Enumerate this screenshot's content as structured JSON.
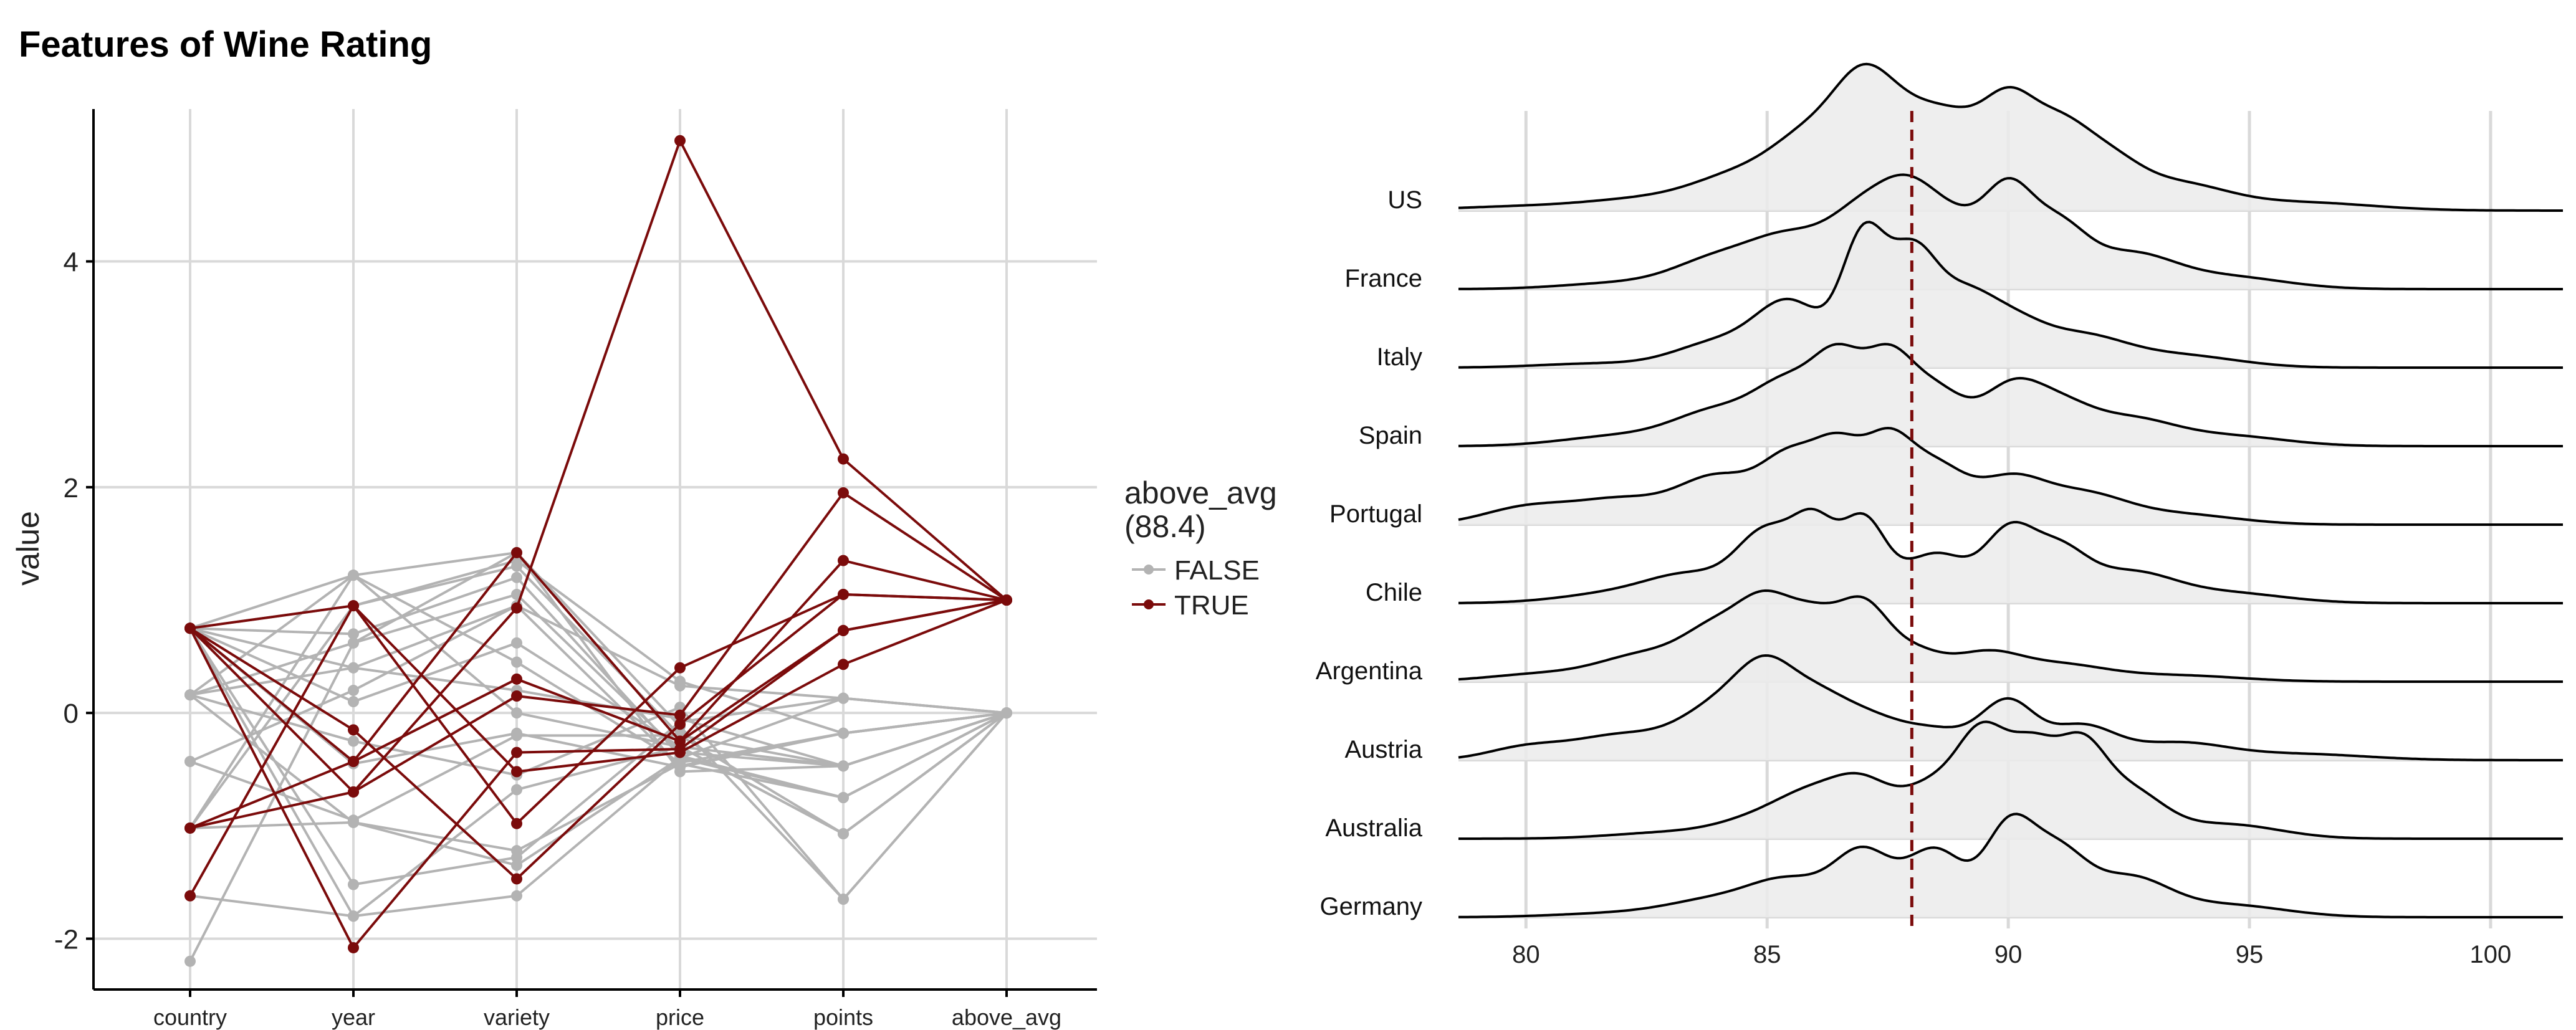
{
  "title": "Features of Wine Rating",
  "colors": {
    "false": "#b3b3b3",
    "true": "#7b0b0b",
    "grid": "#d9d9d9",
    "ridge_fill": "#ebebeb",
    "ridge_line": "#000000"
  },
  "chart_data": [
    {
      "type": "line",
      "subtype": "parallel-coordinates",
      "xlabel": "",
      "ylabel": "value",
      "categories": [
        "country",
        "year",
        "variety",
        "price",
        "points",
        "above_avg"
      ],
      "y_ticks": [
        -2,
        0,
        2,
        4
      ],
      "ylim": [
        -2.45,
        5.35
      ],
      "legend": {
        "title_line1": "above_avg",
        "title_line2": "(88.4)",
        "entries": [
          "FALSE",
          "TRUE"
        ],
        "placement": "right"
      },
      "series": [
        {
          "group": "FALSE",
          "values": [
            0.75,
            1.22,
            1.42,
            -0.12,
            -1.65,
            0
          ]
        },
        {
          "group": "FALSE",
          "values": [
            0.75,
            0.95,
            1.3,
            -0.2,
            -1.07,
            0
          ]
        },
        {
          "group": "FALSE",
          "values": [
            0.75,
            0.7,
            1.2,
            -0.38,
            -0.75,
            0
          ]
        },
        {
          "group": "FALSE",
          "values": [
            0.75,
            0.4,
            0.95,
            0.24,
            0.13,
            0
          ]
        },
        {
          "group": "FALSE",
          "values": [
            0.75,
            0.1,
            0.62,
            -0.3,
            -0.47,
            0
          ]
        },
        {
          "group": "FALSE",
          "values": [
            0.75,
            -0.45,
            -0.18,
            -0.48,
            -0.18,
            0
          ]
        },
        {
          "group": "FALSE",
          "values": [
            0.75,
            -1.52,
            -1.28,
            -0.08,
            0.13,
            0
          ]
        },
        {
          "group": "FALSE",
          "values": [
            0.16,
            0.62,
            1.05,
            -0.35,
            -0.47,
            0
          ]
        },
        {
          "group": "FALSE",
          "values": [
            0.16,
            1.22,
            0.45,
            -0.44,
            -0.18,
            0
          ]
        },
        {
          "group": "FALSE",
          "values": [
            0.16,
            -0.25,
            -0.55,
            0.05,
            -1.65,
            0
          ]
        },
        {
          "group": "FALSE",
          "values": [
            0.16,
            -0.97,
            -1.35,
            -0.4,
            -0.75,
            0
          ]
        },
        {
          "group": "FALSE",
          "values": [
            -0.43,
            0.2,
            0.95,
            -0.47,
            -0.18,
            0
          ]
        },
        {
          "group": "FALSE",
          "values": [
            -0.43,
            -0.95,
            -0.2,
            -0.2,
            -0.47,
            0
          ]
        },
        {
          "group": "FALSE",
          "values": [
            -1.02,
            -0.97,
            -1.22,
            -0.45,
            -0.75,
            0
          ]
        },
        {
          "group": "FALSE",
          "values": [
            -1.02,
            0.95,
            1.35,
            0.28,
            -0.18,
            0
          ]
        },
        {
          "group": "FALSE",
          "values": [
            -1.02,
            1.22,
            0.0,
            -0.3,
            -1.07,
            0
          ]
        },
        {
          "group": "FALSE",
          "values": [
            -2.2,
            0.62,
            1.42,
            -0.52,
            -0.47,
            0
          ]
        },
        {
          "group": "FALSE",
          "values": [
            -1.62,
            -1.8,
            -1.62,
            -0.4,
            0.13,
            0
          ]
        },
        {
          "group": "FALSE",
          "values": [
            0.75,
            -1.8,
            -0.68,
            -0.3,
            -1.07,
            0
          ]
        },
        {
          "group": "FALSE",
          "values": [
            0.16,
            0.4,
            0.2,
            -0.05,
            -0.47,
            0
          ]
        },
        {
          "group": "TRUE",
          "values": [
            0.75,
            0.95,
            -0.52,
            -0.35,
            0.43,
            1
          ]
        },
        {
          "group": "TRUE",
          "values": [
            0.75,
            -0.43,
            0.3,
            -0.25,
            0.73,
            1
          ]
        },
        {
          "group": "TRUE",
          "values": [
            0.75,
            -0.7,
            0.93,
            5.07,
            2.25,
            1
          ]
        },
        {
          "group": "TRUE",
          "values": [
            0.75,
            -0.15,
            -1.47,
            -0.1,
            1.05,
            1
          ]
        },
        {
          "group": "TRUE",
          "values": [
            -1.02,
            -0.43,
            1.42,
            -0.25,
            1.35,
            1
          ]
        },
        {
          "group": "TRUE",
          "values": [
            -1.02,
            -0.7,
            0.15,
            -0.02,
            1.95,
            1
          ]
        },
        {
          "group": "TRUE",
          "values": [
            -1.62,
            0.95,
            -0.98,
            0.4,
            1.05,
            1
          ]
        },
        {
          "group": "TRUE",
          "values": [
            0.75,
            -2.08,
            -0.35,
            -0.32,
            0.73,
            1
          ]
        }
      ]
    },
    {
      "type": "area",
      "subtype": "ridgeline",
      "xlabel": "",
      "ylabel": "",
      "x_ticks": [
        80,
        85,
        90,
        95,
        100
      ],
      "xlim": [
        78.6,
        101.5
      ],
      "reference_line": 88,
      "categories": [
        "US",
        "France",
        "Italy",
        "Spain",
        "Portugal",
        "Chile",
        "Argentina",
        "Austria",
        "Australia",
        "Germany"
      ],
      "ridges": [
        {
          "name": "US",
          "peaks": [
            [
              80,
              0.02,
              1.5
            ],
            [
              82.5,
              0.05,
              1.2
            ],
            [
              84.5,
              0.16,
              1.0
            ],
            [
              86,
              0.32,
              0.8
            ],
            [
              87,
              0.42,
              0.6
            ],
            [
              88,
              0.38,
              0.7
            ],
            [
              89,
              0.28,
              0.6
            ],
            [
              90,
              0.44,
              0.55
            ],
            [
              91,
              0.32,
              0.6
            ],
            [
              92,
              0.22,
              0.7
            ],
            [
              93.5,
              0.12,
              1.0
            ],
            [
              96,
              0.04,
              1.5
            ]
          ]
        },
        {
          "name": "France",
          "peaks": [
            [
              82,
              0.03,
              1.2
            ],
            [
              84,
              0.14,
              0.9
            ],
            [
              85.5,
              0.22,
              0.8
            ],
            [
              87,
              0.34,
              0.7
            ],
            [
              88,
              0.36,
              0.6
            ],
            [
              89,
              0.26,
              0.6
            ],
            [
              90,
              0.4,
              0.5
            ],
            [
              91,
              0.28,
              0.6
            ],
            [
              92.5,
              0.16,
              0.9
            ],
            [
              94.5,
              0.06,
              1.2
            ]
          ]
        },
        {
          "name": "Italy",
          "peaks": [
            [
              81.5,
              0.02,
              1.2
            ],
            [
              84,
              0.12,
              0.9
            ],
            [
              85.5,
              0.3,
              0.7
            ],
            [
              87,
              0.6,
              0.45
            ],
            [
              88,
              0.5,
              0.5
            ],
            [
              89,
              0.28,
              0.6
            ],
            [
              90,
              0.2,
              0.7
            ],
            [
              91.5,
              0.14,
              0.9
            ],
            [
              93.5,
              0.06,
              1.2
            ]
          ]
        },
        {
          "name": "Spain",
          "peaks": [
            [
              82,
              0.05,
              1.2
            ],
            [
              84,
              0.16,
              0.9
            ],
            [
              85.5,
              0.28,
              0.7
            ],
            [
              86.5,
              0.34,
              0.5
            ],
            [
              87.5,
              0.38,
              0.5
            ],
            [
              88.5,
              0.26,
              0.6
            ],
            [
              90,
              0.24,
              0.6
            ],
            [
              91,
              0.18,
              0.7
            ],
            [
              92.5,
              0.12,
              0.9
            ],
            [
              94.5,
              0.05,
              1.2
            ]
          ]
        },
        {
          "name": "Portugal",
          "peaks": [
            [
              80,
              0.08,
              0.9
            ],
            [
              82,
              0.12,
              1.0
            ],
            [
              84,
              0.22,
              0.8
            ],
            [
              85.5,
              0.3,
              0.6
            ],
            [
              86.5,
              0.32,
              0.5
            ],
            [
              87.5,
              0.36,
              0.5
            ],
            [
              88.5,
              0.26,
              0.6
            ],
            [
              90,
              0.2,
              0.7
            ],
            [
              91.5,
              0.14,
              0.9
            ],
            [
              93.5,
              0.05,
              1.2
            ]
          ]
        },
        {
          "name": "Chile",
          "peaks": [
            [
              82,
              0.05,
              1.2
            ],
            [
              83.5,
              0.12,
              0.9
            ],
            [
              85,
              0.32,
              0.6
            ],
            [
              86,
              0.34,
              0.45
            ],
            [
              87,
              0.38,
              0.45
            ],
            [
              88.5,
              0.24,
              0.7
            ],
            [
              90,
              0.3,
              0.5
            ],
            [
              91,
              0.24,
              0.6
            ],
            [
              92.5,
              0.14,
              0.9
            ],
            [
              94.5,
              0.05,
              1.2
            ]
          ]
        },
        {
          "name": "Argentina",
          "peaks": [
            [
              80.5,
              0.04,
              1.2
            ],
            [
              82.5,
              0.12,
              0.9
            ],
            [
              84,
              0.24,
              0.7
            ],
            [
              85,
              0.3,
              0.55
            ],
            [
              86,
              0.28,
              0.55
            ],
            [
              87,
              0.32,
              0.5
            ],
            [
              88,
              0.14,
              0.6
            ],
            [
              89.5,
              0.12,
              0.7
            ],
            [
              91,
              0.08,
              1.0
            ],
            [
              93.5,
              0.03,
              1.3
            ]
          ]
        },
        {
          "name": "Austria",
          "peaks": [
            [
              80,
              0.06,
              0.8
            ],
            [
              82,
              0.12,
              1.0
            ],
            [
              84,
              0.24,
              0.8
            ],
            [
              85,
              0.34,
              0.6
            ],
            [
              86,
              0.22,
              0.6
            ],
            [
              87,
              0.18,
              0.7
            ],
            [
              88.5,
              0.14,
              0.8
            ],
            [
              90,
              0.26,
              0.55
            ],
            [
              91.5,
              0.16,
              0.7
            ],
            [
              93.5,
              0.08,
              1.0
            ],
            [
              96,
              0.03,
              1.4
            ]
          ]
        },
        {
          "name": "Australia",
          "peaks": [
            [
              83,
              0.03,
              1.2
            ],
            [
              85,
              0.1,
              0.9
            ],
            [
              86,
              0.16,
              0.7
            ],
            [
              87,
              0.22,
              0.6
            ],
            [
              88.5,
              0.26,
              0.7
            ],
            [
              89.5,
              0.42,
              0.5
            ],
            [
              90.5,
              0.4,
              0.5
            ],
            [
              91.5,
              0.38,
              0.5
            ],
            [
              92.5,
              0.22,
              0.7
            ],
            [
              94.5,
              0.07,
              1.1
            ]
          ]
        },
        {
          "name": "Germany",
          "peaks": [
            [
              82,
              0.02,
              1.3
            ],
            [
              84,
              0.08,
              1.0
            ],
            [
              85.5,
              0.16,
              0.8
            ],
            [
              87,
              0.3,
              0.6
            ],
            [
              88.5,
              0.32,
              0.6
            ],
            [
              90,
              0.4,
              0.5
            ],
            [
              91,
              0.3,
              0.6
            ],
            [
              92.5,
              0.18,
              0.8
            ],
            [
              94.5,
              0.06,
              1.2
            ]
          ]
        }
      ]
    }
  ]
}
